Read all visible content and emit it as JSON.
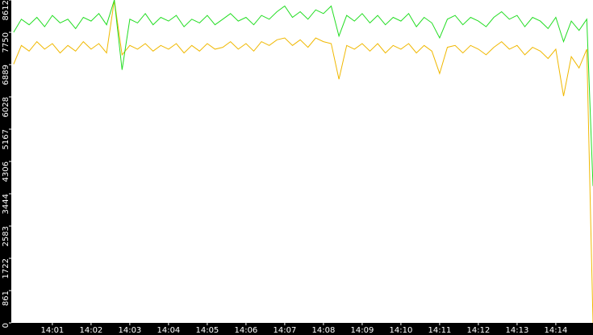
{
  "chart_data": {
    "type": "line",
    "x": [
      0,
      0.2,
      0.4,
      0.6,
      0.8,
      1,
      1.2,
      1.4,
      1.6,
      1.8,
      2,
      2.2,
      2.4,
      2.6,
      2.8,
      3,
      3.2,
      3.4,
      3.6,
      3.8,
      4,
      4.2,
      4.4,
      4.6,
      4.8,
      5,
      5.2,
      5.4,
      5.6,
      5.8,
      6,
      6.2,
      6.4,
      6.6,
      6.8,
      7,
      7.2,
      7.4,
      7.6,
      7.8,
      8,
      8.2,
      8.4,
      8.6,
      8.8,
      9,
      9.2,
      9.4,
      9.6,
      9.8,
      10,
      10.2,
      10.4,
      10.6,
      10.8,
      11,
      11.2,
      11.4,
      11.6,
      11.8,
      12,
      12.2,
      12.4,
      12.6,
      12.8,
      13,
      13.2,
      13.4,
      13.6,
      13.8,
      14,
      14.2,
      14.4,
      14.6,
      14.8,
      14.96
    ],
    "series": [
      {
        "color": "#f0b800",
        "values": [
          6900,
          7400,
          7250,
          7500,
          7300,
          7450,
          7200,
          7400,
          7250,
          7500,
          7300,
          7450,
          7200,
          8612,
          7150,
          7400,
          7300,
          7450,
          7250,
          7400,
          7300,
          7450,
          7200,
          7400,
          7250,
          7450,
          7300,
          7350,
          7500,
          7300,
          7450,
          7250,
          7500,
          7400,
          7550,
          7600,
          7400,
          7550,
          7350,
          7600,
          7500,
          7450,
          6500,
          7400,
          7300,
          7450,
          7250,
          7450,
          7200,
          7400,
          7300,
          7450,
          7200,
          7400,
          7250,
          6650,
          7350,
          7400,
          7200,
          7400,
          7300,
          7150,
          7350,
          7500,
          7300,
          7400,
          7150,
          7350,
          7250,
          7050,
          7300,
          6050,
          7100,
          6800,
          7300,
          0
        ]
      },
      {
        "color": "#22dd22",
        "values": [
          7750,
          8100,
          7950,
          8150,
          7900,
          8200,
          8000,
          8100,
          7850,
          8150,
          8050,
          8250,
          7950,
          8612,
          6750,
          8100,
          8000,
          8250,
          7950,
          8150,
          8050,
          8200,
          7900,
          8100,
          8000,
          8200,
          7950,
          8100,
          8250,
          8050,
          8150,
          7950,
          8200,
          8100,
          8300,
          8450,
          8150,
          8300,
          8100,
          8350,
          8250,
          8450,
          7650,
          8200,
          8050,
          8250,
          8000,
          8200,
          7950,
          8150,
          8050,
          8250,
          7900,
          8150,
          8000,
          7600,
          8100,
          8200,
          7950,
          8150,
          8050,
          7900,
          8150,
          8300,
          8100,
          8200,
          7900,
          8150,
          8050,
          7850,
          8150,
          7500,
          8050,
          7800,
          8100,
          3650
        ]
      }
    ],
    "xlim": [
      -0.06,
      14.96
    ],
    "xticks": [
      {
        "value": 1,
        "label": "14:01"
      },
      {
        "value": 2,
        "label": "14:02"
      },
      {
        "value": 3,
        "label": "14:03"
      },
      {
        "value": 4,
        "label": "14:04"
      },
      {
        "value": 5,
        "label": "14:05"
      },
      {
        "value": 6,
        "label": "14:06"
      },
      {
        "value": 7,
        "label": "14:07"
      },
      {
        "value": 8,
        "label": "14:08"
      },
      {
        "value": 9,
        "label": "14:09"
      },
      {
        "value": 10,
        "label": "14:10"
      },
      {
        "value": 11,
        "label": "14:11"
      },
      {
        "value": 12,
        "label": "14:12"
      },
      {
        "value": 13,
        "label": "14:13"
      },
      {
        "value": 14,
        "label": "14:14"
      }
    ],
    "ylim": [
      0,
      8612
    ],
    "yticks": [
      0,
      861,
      1722,
      2583,
      3444,
      4306,
      5167,
      6028,
      6889,
      7750,
      8612
    ]
  }
}
